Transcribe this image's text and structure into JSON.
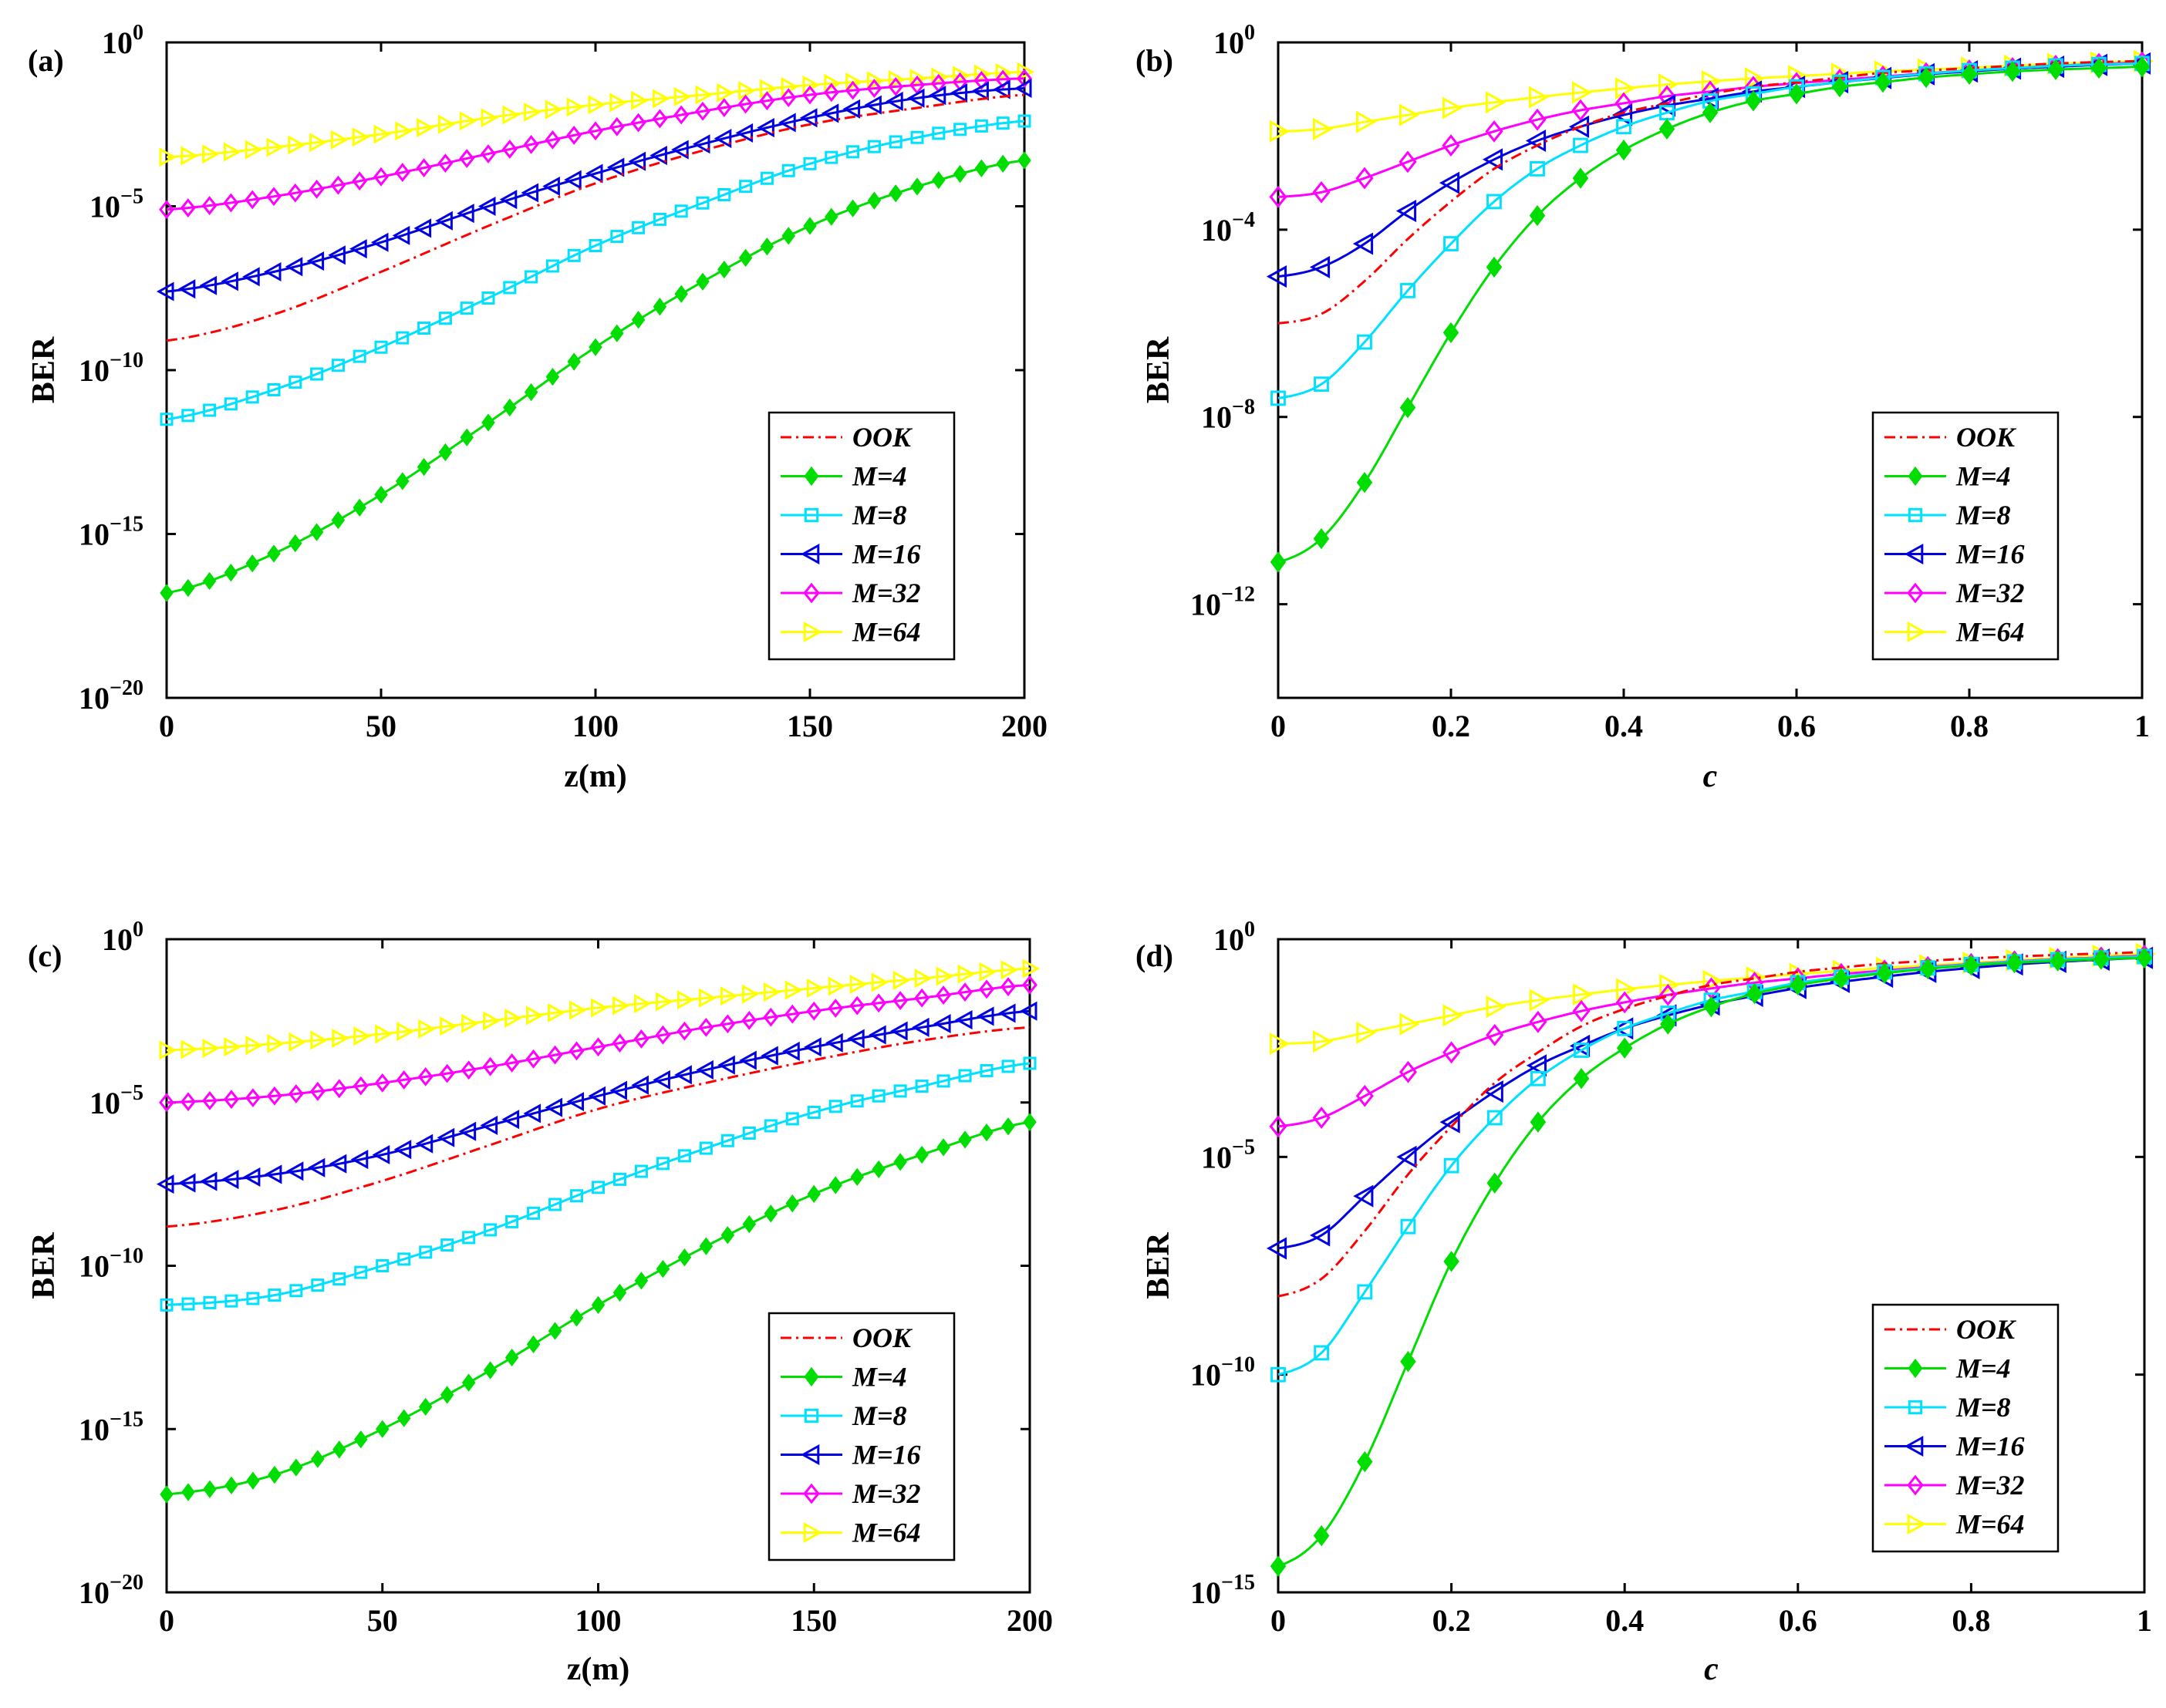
{
  "chart_data": [
    {
      "panel": "(a)",
      "type": "line",
      "scale_y": "log",
      "xlabel": "z(m)",
      "ylabel": "BER",
      "xlim": [
        0,
        200
      ],
      "ylim_exp": [
        -20,
        0
      ],
      "xticks": [
        "0",
        "50",
        "100",
        "150",
        "200"
      ],
      "yticks_exp": [
        "0",
        "-5",
        "-10",
        "-15",
        "-20"
      ],
      "x": [
        0,
        25,
        50,
        75,
        100,
        125,
        150,
        175,
        200
      ],
      "series": [
        {
          "name": "OOK",
          "log_values": [
            -9.1,
            -8.3,
            -7.0,
            -5.6,
            -4.3,
            -3.3,
            -2.5,
            -2.0,
            -1.6
          ]
        },
        {
          "name": "M=4",
          "log_values": [
            -16.8,
            -15.6,
            -13.8,
            -11.6,
            -9.3,
            -7.3,
            -5.6,
            -4.4,
            -3.6
          ]
        },
        {
          "name": "M=8",
          "log_values": [
            -11.5,
            -10.6,
            -9.3,
            -7.8,
            -6.2,
            -4.9,
            -3.7,
            -2.9,
            -2.4
          ]
        },
        {
          "name": "M=16",
          "log_values": [
            -7.6,
            -7.0,
            -6.1,
            -5.0,
            -4.0,
            -3.1,
            -2.3,
            -1.7,
            -1.4
          ]
        },
        {
          "name": "M=32",
          "log_values": [
            -5.1,
            -4.7,
            -4.1,
            -3.4,
            -2.7,
            -2.1,
            -1.6,
            -1.3,
            -1.1
          ]
        },
        {
          "name": "M=64",
          "log_values": [
            -3.5,
            -3.2,
            -2.8,
            -2.3,
            -1.9,
            -1.6,
            -1.3,
            -1.1,
            -0.9
          ]
        }
      ]
    },
    {
      "panel": "(b)",
      "type": "line",
      "scale_y": "log",
      "xlabel": "c",
      "ylabel": "BER",
      "xlim": [
        0,
        1
      ],
      "ylim_exp": [
        -14,
        0
      ],
      "xticks": [
        "0",
        "0.2",
        "0.4",
        "0.6",
        "0.8",
        "1"
      ],
      "yticks_exp": [
        "0",
        "-4",
        "-8",
        "-12"
      ],
      "x": [
        0,
        0.05,
        0.1,
        0.15,
        0.2,
        0.25,
        0.3,
        0.35,
        0.4,
        0.45,
        0.5,
        0.55,
        0.6,
        0.65,
        0.7,
        0.75,
        0.8,
        0.85,
        0.9,
        0.95,
        1
      ],
      "series": [
        {
          "name": "OOK",
          "log_values": [
            -6.0,
            -5.8,
            -5.1,
            -4.2,
            -3.4,
            -2.7,
            -2.2,
            -1.8,
            -1.5,
            -1.3,
            -1.1,
            -0.95,
            -0.85,
            -0.75,
            -0.65,
            -0.6,
            -0.55,
            -0.5,
            -0.45,
            -0.42,
            -0.4
          ]
        },
        {
          "name": "M=4",
          "log_values": [
            -11.1,
            -10.6,
            -9.4,
            -7.8,
            -6.2,
            -4.8,
            -3.7,
            -2.9,
            -2.3,
            -1.85,
            -1.5,
            -1.25,
            -1.1,
            -0.95,
            -0.85,
            -0.75,
            -0.68,
            -0.62,
            -0.58,
            -0.55,
            -0.52
          ]
        },
        {
          "name": "M=8",
          "log_values": [
            -7.6,
            -7.3,
            -6.4,
            -5.3,
            -4.3,
            -3.4,
            -2.7,
            -2.2,
            -1.8,
            -1.5,
            -1.25,
            -1.1,
            -0.95,
            -0.85,
            -0.75,
            -0.67,
            -0.6,
            -0.55,
            -0.5,
            -0.47,
            -0.45
          ]
        },
        {
          "name": "M=16",
          "log_values": [
            -5.0,
            -4.8,
            -4.3,
            -3.6,
            -3.0,
            -2.5,
            -2.1,
            -1.8,
            -1.55,
            -1.35,
            -1.2,
            -1.05,
            -0.95,
            -0.85,
            -0.76,
            -0.68,
            -0.62,
            -0.56,
            -0.52,
            -0.48,
            -0.45
          ]
        },
        {
          "name": "M=32",
          "log_values": [
            -3.3,
            -3.2,
            -2.9,
            -2.55,
            -2.2,
            -1.9,
            -1.65,
            -1.45,
            -1.3,
            -1.15,
            -1.05,
            -0.95,
            -0.87,
            -0.8,
            -0.73,
            -0.66,
            -0.6,
            -0.55,
            -0.5,
            -0.46,
            -0.43
          ]
        },
        {
          "name": "M=64",
          "log_values": [
            -1.9,
            -1.85,
            -1.7,
            -1.55,
            -1.4,
            -1.28,
            -1.17,
            -1.07,
            -0.98,
            -0.9,
            -0.83,
            -0.77,
            -0.72,
            -0.67,
            -0.62,
            -0.58,
            -0.54,
            -0.5,
            -0.46,
            -0.43,
            -0.4
          ]
        }
      ]
    },
    {
      "panel": "(c)",
      "type": "line",
      "scale_y": "log",
      "xlabel": "z(m)",
      "ylabel": "BER",
      "xlim": [
        0,
        200
      ],
      "ylim_exp": [
        -20,
        0
      ],
      "xticks": [
        "0",
        "50",
        "100",
        "150",
        "200"
      ],
      "yticks_exp": [
        "0",
        "-5",
        "-10",
        "-15",
        "-20"
      ],
      "x": [
        0,
        25,
        50,
        75,
        100,
        125,
        150,
        175,
        200
      ],
      "series": [
        {
          "name": "OOK",
          "log_values": [
            -8.8,
            -8.3,
            -7.4,
            -6.3,
            -5.2,
            -4.4,
            -3.7,
            -3.1,
            -2.7
          ]
        },
        {
          "name": "M=4",
          "log_values": [
            -17.0,
            -16.4,
            -15.0,
            -13.2,
            -11.2,
            -9.4,
            -7.8,
            -6.6,
            -5.6
          ]
        },
        {
          "name": "M=8",
          "log_values": [
            -11.2,
            -10.9,
            -10.0,
            -8.9,
            -7.6,
            -6.4,
            -5.3,
            -4.5,
            -3.8
          ]
        },
        {
          "name": "M=16",
          "log_values": [
            -7.5,
            -7.2,
            -6.6,
            -5.7,
            -4.8,
            -4.0,
            -3.3,
            -2.7,
            -2.2
          ]
        },
        {
          "name": "M=32",
          "log_values": [
            -5.0,
            -4.8,
            -4.4,
            -3.9,
            -3.3,
            -2.7,
            -2.2,
            -1.8,
            -1.4
          ]
        },
        {
          "name": "M=64",
          "log_values": [
            -3.4,
            -3.2,
            -2.9,
            -2.5,
            -2.1,
            -1.8,
            -1.5,
            -1.2,
            -0.9
          ]
        }
      ]
    },
    {
      "panel": "(d)",
      "type": "line",
      "scale_y": "log",
      "xlabel": "c",
      "ylabel": "BER",
      "xlim": [
        0,
        1
      ],
      "ylim_exp": [
        -15,
        0
      ],
      "xticks": [
        "0",
        "0.2",
        "0.4",
        "0.6",
        "0.8",
        "1"
      ],
      "yticks_exp": [
        "0",
        "-5",
        "-10",
        "-15"
      ],
      "x": [
        0,
        0.05,
        0.1,
        0.15,
        0.2,
        0.25,
        0.3,
        0.35,
        0.4,
        0.45,
        0.5,
        0.55,
        0.6,
        0.65,
        0.7,
        0.75,
        0.8,
        0.85,
        0.9,
        0.95,
        1
      ],
      "series": [
        {
          "name": "OOK",
          "log_values": [
            -8.2,
            -7.8,
            -6.7,
            -5.4,
            -4.3,
            -3.3,
            -2.6,
            -2.0,
            -1.6,
            -1.3,
            -1.05,
            -0.9,
            -0.75,
            -0.65,
            -0.56,
            -0.5,
            -0.44,
            -0.4,
            -0.36,
            -0.33,
            -0.3
          ]
        },
        {
          "name": "M=4",
          "log_values": [
            -14.4,
            -13.7,
            -12.0,
            -9.7,
            -7.4,
            -5.6,
            -4.2,
            -3.2,
            -2.5,
            -1.95,
            -1.55,
            -1.25,
            -1.05,
            -0.9,
            -0.78,
            -0.68,
            -0.6,
            -0.54,
            -0.5,
            -0.46,
            -0.43
          ]
        },
        {
          "name": "M=8",
          "log_values": [
            -10.0,
            -9.5,
            -8.1,
            -6.6,
            -5.2,
            -4.1,
            -3.2,
            -2.55,
            -2.05,
            -1.7,
            -1.4,
            -1.2,
            -1.0,
            -0.87,
            -0.75,
            -0.66,
            -0.58,
            -0.52,
            -0.47,
            -0.43,
            -0.4
          ]
        },
        {
          "name": "M=16",
          "log_values": [
            -7.1,
            -6.8,
            -5.9,
            -5.0,
            -4.2,
            -3.5,
            -2.9,
            -2.45,
            -2.05,
            -1.75,
            -1.5,
            -1.3,
            -1.12,
            -0.98,
            -0.86,
            -0.75,
            -0.66,
            -0.58,
            -0.52,
            -0.47,
            -0.43
          ]
        },
        {
          "name": "M=32",
          "log_values": [
            -4.3,
            -4.1,
            -3.6,
            -3.05,
            -2.6,
            -2.2,
            -1.9,
            -1.65,
            -1.45,
            -1.28,
            -1.13,
            -1.0,
            -0.9,
            -0.8,
            -0.72,
            -0.64,
            -0.57,
            -0.51,
            -0.46,
            -0.42,
            -0.38
          ]
        },
        {
          "name": "M=64",
          "log_values": [
            -2.4,
            -2.35,
            -2.15,
            -1.95,
            -1.75,
            -1.55,
            -1.4,
            -1.27,
            -1.15,
            -1.05,
            -0.96,
            -0.88,
            -0.8,
            -0.73,
            -0.66,
            -0.6,
            -0.54,
            -0.48,
            -0.43,
            -0.38,
            -0.34
          ]
        }
      ]
    }
  ],
  "legend": {
    "entries": [
      "OOK",
      "M=4",
      "M=8",
      "M=16",
      "M=32",
      "M=64"
    ],
    "position": "bottom-right"
  },
  "styles": {
    "OOK": {
      "color": "#ff0000",
      "marker": "none",
      "dash": "dashdot"
    },
    "M=4": {
      "color": "#00dd00",
      "marker": "diamond-filled"
    },
    "M=8": {
      "color": "#00e0ff",
      "marker": "square"
    },
    "M=16": {
      "color": "#0000e0",
      "marker": "triangle-left"
    },
    "M=32": {
      "color": "#ff00ff",
      "marker": "diamond"
    },
    "M=64": {
      "color": "#ffff00",
      "marker": "triangle-right"
    }
  },
  "tick_base": "10"
}
